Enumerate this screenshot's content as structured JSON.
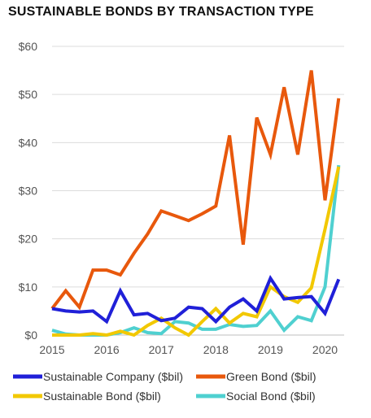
{
  "chart_data": {
    "type": "line",
    "title": "SUSTAINABLE BONDS BY TRANSACTION TYPE",
    "xlabel": "",
    "ylabel": "",
    "xlim": [
      2015,
      2020.35
    ],
    "ylim": [
      0,
      60
    ],
    "x_ticks": [
      2015,
      2016,
      2017,
      2018,
      2019,
      2020
    ],
    "y_ticks": [
      0,
      10,
      20,
      30,
      40,
      50,
      60
    ],
    "y_tick_labels": [
      "$0",
      "$10",
      "$20",
      "$30",
      "$40",
      "$50",
      "$60"
    ],
    "grid": "horizontal",
    "legend_position": "bottom",
    "series": [
      {
        "name": "Sustainable Company ($bil)",
        "color": "#2020d8",
        "x": [
          2015.0,
          2015.25,
          2015.5,
          2015.75,
          2016.0,
          2016.25,
          2016.5,
          2016.75,
          2017.0,
          2017.25,
          2017.5,
          2017.75,
          2018.0,
          2018.25,
          2018.5,
          2018.75,
          2019.0,
          2019.25,
          2019.5,
          2019.75,
          2020.0,
          2020.25
        ],
        "values": [
          5.5,
          5.0,
          4.8,
          5.0,
          2.8,
          9.2,
          4.2,
          4.5,
          3.0,
          3.5,
          5.8,
          5.5,
          2.8,
          5.8,
          7.5,
          5.0,
          11.8,
          7.5,
          7.8,
          8.0,
          4.5,
          11.6
        ]
      },
      {
        "name": "Green Bond ($bil)",
        "color": "#e8580c",
        "x": [
          2015.0,
          2015.25,
          2015.5,
          2015.75,
          2016.0,
          2016.25,
          2016.5,
          2016.75,
          2017.0,
          2017.25,
          2017.5,
          2017.75,
          2018.0,
          2018.25,
          2018.5,
          2018.75,
          2019.0,
          2019.25,
          2019.5,
          2019.75,
          2020.0,
          2020.25
        ],
        "values": [
          5.5,
          9.2,
          5.8,
          13.5,
          13.5,
          12.5,
          17.0,
          21.0,
          25.8,
          24.8,
          23.8,
          25.2,
          26.8,
          41.5,
          18.8,
          45.2,
          37.5,
          51.5,
          37.5,
          55.0,
          28.0,
          49.2
        ]
      },
      {
        "name": "Sustainable Bond ($bil)",
        "color": "#f2c800",
        "x": [
          2015.0,
          2015.25,
          2015.5,
          2015.75,
          2016.0,
          2016.25,
          2016.5,
          2016.75,
          2017.0,
          2017.25,
          2017.5,
          2017.75,
          2018.0,
          2018.25,
          2018.5,
          2018.75,
          2019.0,
          2019.25,
          2019.5,
          2019.75,
          2020.0,
          2020.25
        ],
        "values": [
          0.0,
          0.0,
          0.0,
          0.3,
          0.0,
          0.8,
          0.0,
          2.0,
          3.5,
          1.5,
          0.0,
          2.8,
          5.5,
          2.5,
          4.5,
          3.8,
          10.0,
          8.0,
          6.8,
          9.8,
          22.0,
          35.0
        ]
      },
      {
        "name": "Social Bond ($bil)",
        "color": "#4fd0d0",
        "x": [
          2015.0,
          2015.25,
          2015.5,
          2015.75,
          2016.0,
          2016.25,
          2016.5,
          2016.75,
          2017.0,
          2017.25,
          2017.5,
          2017.75,
          2018.0,
          2018.25,
          2018.5,
          2018.75,
          2019.0,
          2019.25,
          2019.5,
          2019.75,
          2020.0,
          2020.25
        ],
        "values": [
          1.0,
          0.2,
          0.0,
          0.0,
          0.0,
          0.5,
          1.5,
          0.5,
          0.3,
          2.8,
          2.5,
          1.2,
          1.2,
          2.2,
          1.8,
          2.0,
          5.0,
          1.0,
          3.8,
          3.0,
          10.0,
          35.3
        ]
      }
    ]
  }
}
